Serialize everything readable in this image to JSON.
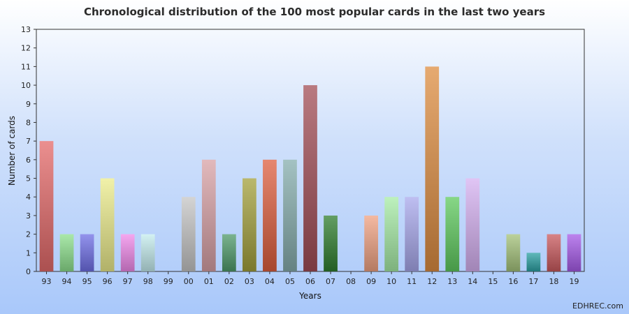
{
  "chart_data": {
    "type": "bar",
    "title": "Chronological distribution of the 100 most popular cards in the last two years",
    "xlabel": "Years",
    "ylabel": "Number of cards",
    "ylim": [
      0,
      13
    ],
    "yticks": [
      0,
      1,
      2,
      3,
      4,
      5,
      6,
      7,
      8,
      9,
      10,
      11,
      12,
      13
    ],
    "categories": [
      "93",
      "94",
      "95",
      "96",
      "97",
      "98",
      "99",
      "00",
      "01",
      "02",
      "03",
      "04",
      "05",
      "06",
      "07",
      "08",
      "09",
      "10",
      "11",
      "12",
      "13",
      "14",
      "15",
      "16",
      "17",
      "18",
      "19"
    ],
    "values": [
      7,
      2,
      2,
      5,
      2,
      2,
      0,
      4,
      6,
      2,
      5,
      6,
      6,
      10,
      3,
      0,
      3,
      4,
      4,
      11,
      4,
      5,
      0,
      2,
      1,
      2,
      2
    ],
    "colors": [
      "#e46a6a",
      "#8de08d",
      "#6f6fe6",
      "#ecec8c",
      "#f089ea",
      "#c4ecee",
      "#cccccc",
      "#c5c5c5",
      "#d8a1a6",
      "#4f9a6a",
      "#a3a03c",
      "#dd5f3f",
      "#86adad",
      "#a14d56",
      "#2f7d2f",
      "#cccccc",
      "#f0a282",
      "#a7eca7",
      "#a8a8ec",
      "#dd8d42",
      "#5fca5f",
      "#d6b1f2",
      "#cccccc",
      "#a4c27a",
      "#2aa0a3",
      "#c9595d",
      "#a65ae8"
    ],
    "grid": false
  },
  "watermark": "EDHREC.com"
}
